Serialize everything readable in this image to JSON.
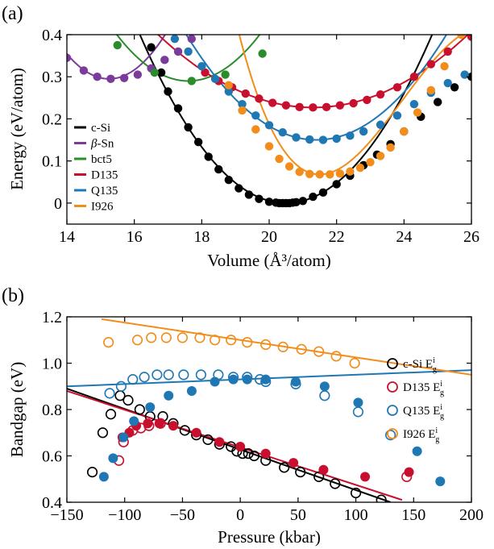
{
  "colors": {
    "c-Si": "#000000",
    "beta-Sn": "#7b3b9b",
    "bct5": "#2a8c2a",
    "D135": "#c8102e",
    "Q135": "#1f77b4",
    "I926": "#f28c1a"
  },
  "chart_data": [
    {
      "type": "line",
      "panel_label": "(a)",
      "xlabel": "Volume (Å³/atom)",
      "ylabel": "Energy (eV/atom)",
      "xlim": [
        14,
        26
      ],
      "ylim": [
        -0.05,
        0.4
      ],
      "xticks": [
        "14",
        "16",
        "18",
        "20",
        "22",
        "24",
        "26"
      ],
      "yticks": [
        "0",
        "0.1",
        "0.2",
        "0.3",
        "0.4"
      ],
      "legend_position": "bottom-left",
      "series": [
        {
          "name": "c-Si",
          "curve": {
            "V0": 20.5,
            "E0": 0.0,
            "a": 0.0213,
            "b": 0.0
          },
          "points": [
            [
              16.5,
              0.37
            ],
            [
              16.8,
              0.31
            ],
            [
              17.0,
              0.265
            ],
            [
              17.3,
              0.225
            ],
            [
              17.6,
              0.18
            ],
            [
              17.9,
              0.145
            ],
            [
              18.2,
              0.11
            ],
            [
              18.5,
              0.08
            ],
            [
              18.8,
              0.055
            ],
            [
              19.1,
              0.035
            ],
            [
              19.4,
              0.02
            ],
            [
              19.7,
              0.01
            ],
            [
              20.0,
              0.003
            ],
            [
              20.2,
              0.001
            ],
            [
              20.3,
              0.0
            ],
            [
              20.4,
              0.0
            ],
            [
              20.5,
              0.0
            ],
            [
              20.6,
              0.0
            ],
            [
              20.7,
              0.001
            ],
            [
              20.8,
              0.002
            ],
            [
              21.0,
              0.005
            ],
            [
              21.3,
              0.015
            ],
            [
              21.6,
              0.025
            ],
            [
              22.0,
              0.045
            ],
            [
              22.4,
              0.065
            ],
            [
              22.8,
              0.09
            ],
            [
              23.2,
              0.115
            ],
            [
              23.6,
              0.14
            ],
            [
              24.0,
              0.17
            ],
            [
              24.5,
              0.205
            ],
            [
              25.0,
              0.24
            ],
            [
              25.5,
              0.275
            ],
            [
              26.0,
              0.3
            ]
          ]
        },
        {
          "name": "β-Sn",
          "curve": {
            "V0": 15.25,
            "E0": 0.295,
            "a": 0.038,
            "b": 0.0
          },
          "points": [
            [
              14.0,
              0.345
            ],
            [
              14.5,
              0.315
            ],
            [
              14.9,
              0.3
            ],
            [
              15.3,
              0.295
            ],
            [
              15.7,
              0.297
            ],
            [
              16.1,
              0.305
            ],
            [
              16.5,
              0.32
            ],
            [
              16.9,
              0.34
            ],
            [
              17.3,
              0.36
            ],
            [
              17.7,
              0.39
            ]
          ]
        },
        {
          "name": "bct5",
          "curve": {
            "V0": 17.6,
            "E0": 0.29,
            "a": 0.0245,
            "b": 0.0
          },
          "points": [
            [
              15.5,
              0.375
            ],
            [
              16.6,
              0.31
            ],
            [
              17.7,
              0.29
            ],
            [
              18.7,
              0.305
            ],
            [
              19.8,
              0.355
            ]
          ]
        },
        {
          "name": "D135",
          "curve": {
            "V0": 21.3,
            "E0": 0.227,
            "a": 0.0082,
            "b": 0.0
          },
          "points": [
            [
              18.1,
              0.31
            ],
            [
              18.5,
              0.29
            ],
            [
              18.9,
              0.275
            ],
            [
              19.3,
              0.26
            ],
            [
              19.7,
              0.248
            ],
            [
              20.1,
              0.238
            ],
            [
              20.5,
              0.232
            ],
            [
              20.9,
              0.228
            ],
            [
              21.3,
              0.227
            ],
            [
              21.7,
              0.228
            ],
            [
              22.1,
              0.232
            ],
            [
              22.5,
              0.237
            ],
            [
              22.9,
              0.245
            ],
            [
              23.3,
              0.258
            ],
            [
              23.8,
              0.275
            ],
            [
              24.3,
              0.3
            ],
            [
              24.8,
              0.33
            ],
            [
              25.3,
              0.36
            ],
            [
              26.0,
              0.395
            ]
          ]
        },
        {
          "name": "Q135",
          "curve": {
            "V0": 21.4,
            "E0": 0.15,
            "a": 0.0168,
            "b": 0.0
          },
          "points": [
            [
              17.2,
              0.39
            ],
            [
              17.6,
              0.36
            ],
            [
              18.0,
              0.325
            ],
            [
              18.4,
              0.295
            ],
            [
              18.8,
              0.265
            ],
            [
              19.2,
              0.235
            ],
            [
              19.6,
              0.208
            ],
            [
              20.0,
              0.185
            ],
            [
              20.4,
              0.168
            ],
            [
              20.8,
              0.156
            ],
            [
              21.2,
              0.151
            ],
            [
              21.6,
              0.15
            ],
            [
              22.0,
              0.153
            ],
            [
              22.4,
              0.16
            ],
            [
              22.8,
              0.17
            ],
            [
              23.3,
              0.186
            ],
            [
              23.8,
              0.208
            ],
            [
              24.3,
              0.235
            ],
            [
              24.8,
              0.262
            ],
            [
              25.3,
              0.285
            ],
            [
              25.8,
              0.305
            ]
          ]
        },
        {
          "name": "I926",
          "curve": {
            "V0": 21.5,
            "E0": 0.068,
            "a": 0.044,
            "b": -0.006
          },
          "points": [
            [
              18.8,
              0.28
            ],
            [
              19.2,
              0.22
            ],
            [
              19.6,
              0.175
            ],
            [
              20.0,
              0.135
            ],
            [
              20.3,
              0.105
            ],
            [
              20.6,
              0.087
            ],
            [
              20.9,
              0.074
            ],
            [
              21.2,
              0.069
            ],
            [
              21.5,
              0.068
            ],
            [
              21.8,
              0.068
            ],
            [
              22.1,
              0.07
            ],
            [
              22.4,
              0.075
            ],
            [
              22.7,
              0.084
            ],
            [
              23.0,
              0.097
            ],
            [
              23.3,
              0.112
            ],
            [
              23.6,
              0.132
            ],
            [
              24.0,
              0.17
            ],
            [
              24.4,
              0.215
            ],
            [
              24.8,
              0.268
            ],
            [
              25.2,
              0.325
            ],
            [
              25.7,
              0.4
            ]
          ]
        }
      ]
    },
    {
      "type": "scatter",
      "panel_label": "(b)",
      "xlabel": "Pressure (kbar)",
      "ylabel": "Bandgap (eV)",
      "xlim": [
        -150,
        200
      ],
      "ylim": [
        0.4,
        1.2
      ],
      "xticks": [
        "−150",
        "−100",
        "−50",
        "0",
        "50",
        "100",
        "150",
        "200"
      ],
      "yticks": [
        "0.4",
        "0.6",
        "0.8",
        "1.0",
        "1.2"
      ],
      "legend_position": "right",
      "legend": [
        {
          "key": "c-Si",
          "label": "c-Si E",
          "sub": "g",
          "sup": "i"
        },
        {
          "key": "D135",
          "label": "D135 E",
          "sub": "g",
          "sup": "i"
        },
        {
          "key": "Q135",
          "label": "Q135 E",
          "sub": "g",
          "sup": "i"
        },
        {
          "key": "I926",
          "label": "I926 E",
          "sub": "g",
          "sup": "i"
        }
      ],
      "lines": [
        {
          "key": "c-Si",
          "from": [
            -150,
            0.89
          ],
          "to": [
            130,
            0.4
          ]
        },
        {
          "key": "D135",
          "from": [
            -150,
            0.88
          ],
          "to": [
            140,
            0.41
          ]
        },
        {
          "key": "Q135",
          "from": [
            -150,
            0.9
          ],
          "to": [
            200,
            0.97
          ]
        },
        {
          "key": "I926",
          "from": [
            -120,
            1.19
          ],
          "to": [
            200,
            0.95
          ]
        }
      ],
      "series": [
        {
          "key": "c-Si",
          "open": [
            [
              -128,
              0.53
            ],
            [
              -119,
              0.7
            ],
            [
              -112,
              0.78
            ],
            [
              -104,
              0.86
            ],
            [
              -97,
              0.84
            ],
            [
              -87,
              0.8
            ],
            [
              -78,
              0.77
            ],
            [
              -67,
              0.77
            ],
            [
              -58,
              0.74
            ],
            [
              -48,
              0.71
            ],
            [
              -38,
              0.69
            ],
            [
              -28,
              0.67
            ],
            [
              -18,
              0.65
            ],
            [
              -8,
              0.64
            ],
            [
              -3,
              0.62
            ],
            [
              2,
              0.61
            ],
            [
              7,
              0.61
            ],
            [
              12,
              0.6
            ],
            [
              22,
              0.58
            ],
            [
              38,
              0.55
            ],
            [
              52,
              0.53
            ],
            [
              68,
              0.51
            ],
            [
              82,
              0.48
            ],
            [
              100,
              0.44
            ],
            [
              122,
              0.41
            ]
          ],
          "filled": []
        },
        {
          "key": "D135",
          "open": [
            [
              -105,
              0.58
            ],
            [
              -101,
              0.66
            ],
            [
              -93,
              0.71
            ],
            [
              -86,
              0.72
            ],
            [
              -79,
              0.73
            ],
            [
              -69,
              0.74
            ],
            [
              144,
              0.51
            ]
          ],
          "filled": [
            [
              -102,
              0.68
            ],
            [
              -96,
              0.7
            ],
            [
              -90,
              0.73
            ],
            [
              -80,
              0.74
            ],
            [
              -70,
              0.74
            ],
            [
              -58,
              0.73
            ],
            [
              -38,
              0.7
            ],
            [
              -18,
              0.66
            ],
            [
              0,
              0.64
            ],
            [
              22,
              0.61
            ],
            [
              46,
              0.57
            ],
            [
              72,
              0.54
            ],
            [
              108,
              0.51
            ],
            [
              146,
              0.53
            ]
          ]
        },
        {
          "key": "Q135",
          "open": [
            [
              -113,
              0.87
            ],
            [
              -103,
              0.9
            ],
            [
              -93,
              0.93
            ],
            [
              -83,
              0.94
            ],
            [
              -72,
              0.95
            ],
            [
              -62,
              0.95
            ],
            [
              -49,
              0.95
            ],
            [
              -34,
              0.95
            ],
            [
              -19,
              0.95
            ],
            [
              -6,
              0.94
            ],
            [
              6,
              0.94
            ],
            [
              17,
              0.93
            ],
            [
              22,
              0.92
            ],
            [
              48,
              0.91
            ],
            [
              73,
              0.86
            ],
            [
              102,
              0.79
            ],
            [
              130,
              0.69
            ]
          ],
          "filled": [
            [
              -118,
              0.51
            ],
            [
              -110,
              0.59
            ],
            [
              -101,
              0.68
            ],
            [
              -92,
              0.75
            ],
            [
              -78,
              0.81
            ],
            [
              -62,
              0.86
            ],
            [
              -42,
              0.88
            ],
            [
              -22,
              0.92
            ],
            [
              -6,
              0.93
            ],
            [
              6,
              0.93
            ],
            [
              22,
              0.93
            ],
            [
              48,
              0.92
            ],
            [
              73,
              0.9
            ],
            [
              102,
              0.83
            ],
            [
              153,
              0.62
            ],
            [
              173,
              0.49
            ]
          ]
        },
        {
          "key": "I926",
          "open": [
            [
              -114,
              1.09
            ],
            [
              -89,
              1.1
            ],
            [
              -77,
              1.11
            ],
            [
              -64,
              1.11
            ],
            [
              -50,
              1.11
            ],
            [
              -35,
              1.11
            ],
            [
              -22,
              1.1
            ],
            [
              -8,
              1.1
            ],
            [
              6,
              1.09
            ],
            [
              22,
              1.08
            ],
            [
              37,
              1.07
            ],
            [
              53,
              1.06
            ],
            [
              68,
              1.05
            ],
            [
              83,
              1.03
            ],
            [
              99,
              1.0
            ]
          ],
          "filled": []
        }
      ]
    }
  ]
}
